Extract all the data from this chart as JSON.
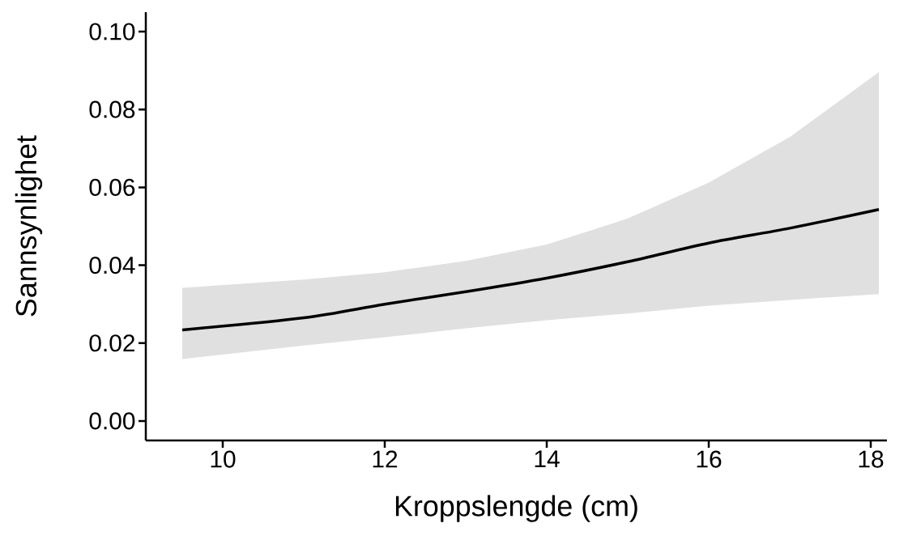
{
  "chart_data": {
    "type": "line",
    "xlabel": "Kroppslengde (cm)",
    "ylabel": "Sannsynlighet",
    "xlim": [
      9.05,
      18.2
    ],
    "ylim": [
      -0.005,
      0.105
    ],
    "xticks": [
      10,
      12,
      14,
      16,
      18
    ],
    "yticks": [
      {
        "value": 0,
        "label": "0.00"
      },
      {
        "value": 0.02,
        "label": "0.02"
      },
      {
        "value": 0.04,
        "label": "0.04"
      },
      {
        "value": 0.06,
        "label": "0.06"
      },
      {
        "value": 0.08,
        "label": "0.08"
      },
      {
        "value": 0.1,
        "label": "0.10"
      }
    ],
    "x": [
      9.5,
      11,
      12,
      13,
      14,
      15,
      16,
      17,
      18.1
    ],
    "series": [
      {
        "color": "#000000",
        "values": [
          0.0234,
          0.0265,
          0.03,
          0.0332,
          0.0367,
          0.0409,
          0.0457,
          0.0495,
          0.0543
        ],
        "lower": [
          0.0159,
          0.0194,
          0.0215,
          0.0238,
          0.0259,
          0.0276,
          0.0296,
          0.0311,
          0.0326
        ],
        "upper": [
          0.0342,
          0.0363,
          0.0382,
          0.0411,
          0.0453,
          0.052,
          0.0612,
          0.0729,
          0.0896
        ]
      }
    ]
  }
}
